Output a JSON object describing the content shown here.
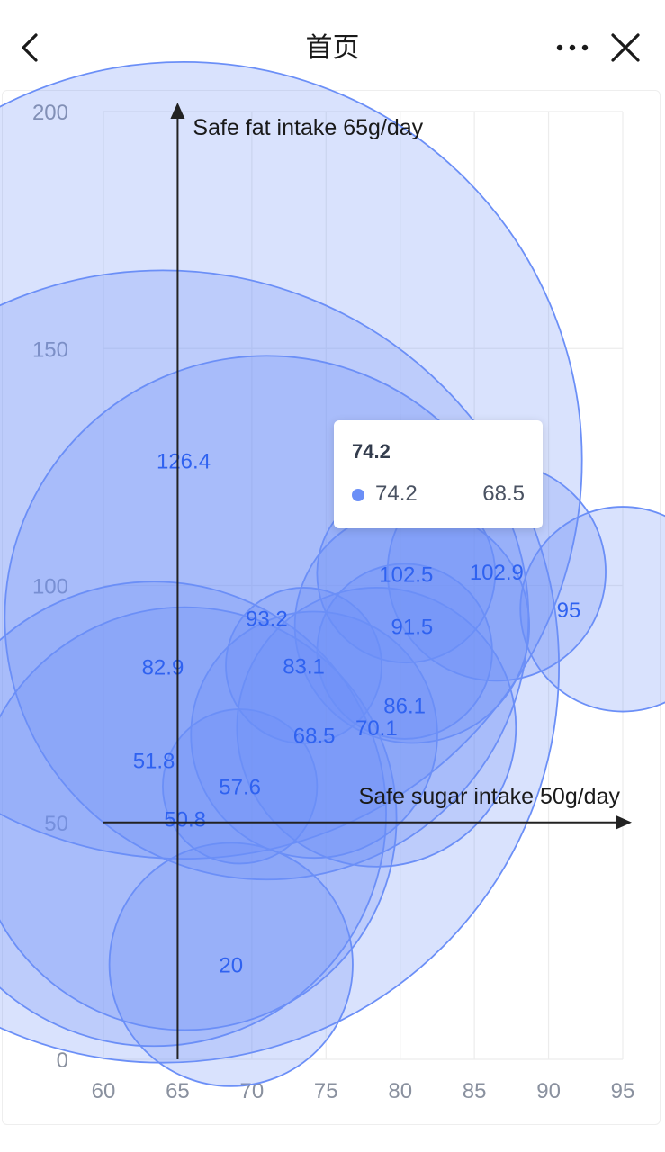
{
  "nav": {
    "title": "首页",
    "back_icon": "chevron-left-icon",
    "more_icon": "more-dots-icon",
    "close_icon": "close-icon"
  },
  "tooltip": {
    "title": "74.2",
    "x_value": "74.2",
    "y_value": "68.5",
    "dot_color": "#6b8ff7"
  },
  "chart_data": {
    "type": "scatter",
    "bubble": true,
    "xlim": [
      60,
      95
    ],
    "ylim": [
      0,
      200
    ],
    "xticks": [
      60,
      65,
      70,
      75,
      80,
      85,
      90,
      95
    ],
    "yticks": [
      0,
      50,
      100,
      150,
      200
    ],
    "grid": true,
    "annotations": [
      {
        "text": "Safe fat intake 65g/day",
        "type": "vertical-arrow",
        "x": 65
      },
      {
        "text": "Safe sugar intake 50g/day",
        "type": "horizontal-arrow",
        "y": 50
      }
    ],
    "colors": {
      "fill": "#6b8ff7",
      "label": "#2f62f0",
      "axis": "#222222",
      "grid": "#ececec",
      "tick": "#8a919f"
    },
    "points": [
      {
        "x": 95,
        "y": 95,
        "size": 13.8,
        "label": "95"
      },
      {
        "x": 86.5,
        "y": 102.9,
        "size": 14.7,
        "label": "102.9"
      },
      {
        "x": 80.8,
        "y": 91.5,
        "size": 15.8,
        "label": "91.5"
      },
      {
        "x": 80.4,
        "y": 102.5,
        "size": 12,
        "label": "102.5"
      },
      {
        "x": 80.3,
        "y": 86.1,
        "size": 11.8,
        "label": "86.1"
      },
      {
        "x": 78.4,
        "y": 70.1,
        "size": 18.8,
        "label": "70.1"
      },
      {
        "x": 74.2,
        "y": 68.5,
        "size": 16.6,
        "label": "68.5"
      },
      {
        "x": 73.5,
        "y": 83.1,
        "size": 10.5,
        "label": "83.1"
      },
      {
        "x": 71,
        "y": 93.2,
        "size": 35.3,
        "label": "93.2"
      },
      {
        "x": 69.2,
        "y": 57.6,
        "size": 10.4,
        "label": "57.6"
      },
      {
        "x": 68.6,
        "y": 20,
        "size": 16.4,
        "label": "20"
      },
      {
        "x": 65.5,
        "y": 50.8,
        "size": 28.5,
        "label": "50.8"
      },
      {
        "x": 65.4,
        "y": 126.4,
        "size": 53.7,
        "label": "126.4"
      },
      {
        "x": 64,
        "y": 82.9,
        "size": 53.4,
        "label": "82.9"
      },
      {
        "x": 63.4,
        "y": 51.8,
        "size": 31.3,
        "label": "51.8"
      }
    ]
  }
}
